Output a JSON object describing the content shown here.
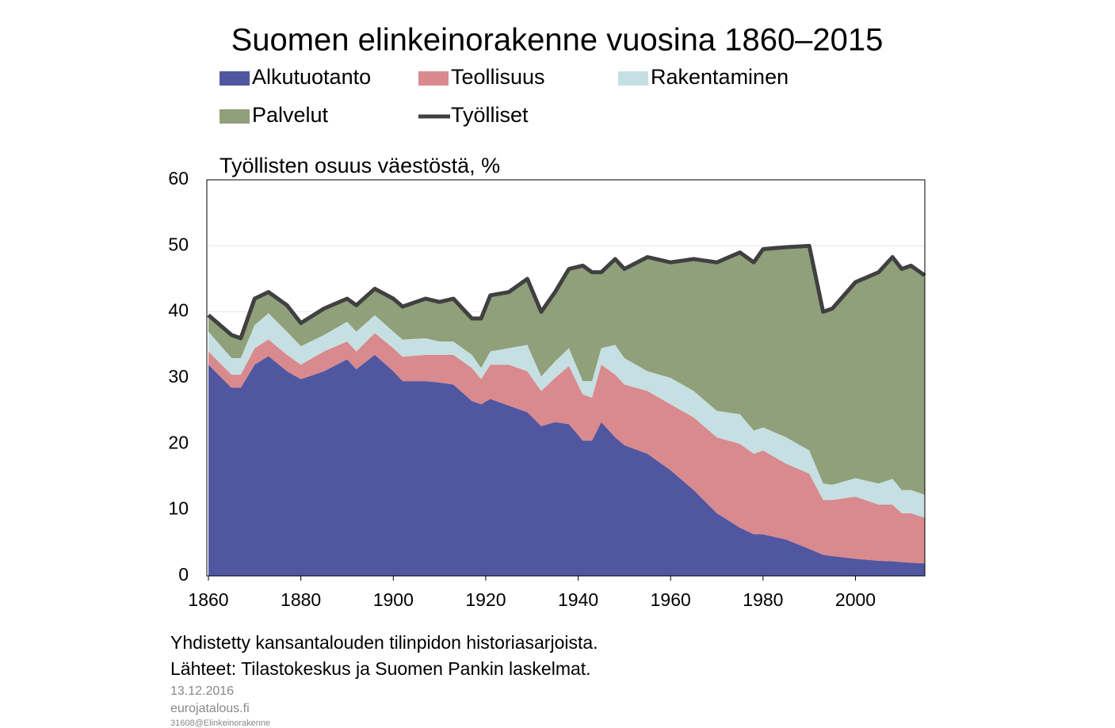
{
  "chart_data": {
    "type": "area",
    "stacked": true,
    "title": "Suomen elinkeinorakenne vuosina 1860–2015",
    "y_label": "Työllisten osuus väestöstä, %",
    "x": [
      1860,
      1865,
      1867,
      1870,
      1873,
      1877,
      1880,
      1885,
      1890,
      1892,
      1896,
      1900,
      1902,
      1907,
      1910,
      1913,
      1917,
      1919,
      1921,
      1925,
      1929,
      1932,
      1935,
      1938,
      1941,
      1943,
      1945,
      1948,
      1950,
      1955,
      1960,
      1965,
      1970,
      1975,
      1978,
      1980,
      1985,
      1990,
      1993,
      1995,
      2000,
      2005,
      2008,
      2010,
      2012,
      2015
    ],
    "series": [
      {
        "name": "Alkutuotanto",
        "color": "#5057a0",
        "values": [
          32,
          28.5,
          28.5,
          32,
          33.3,
          31,
          29.8,
          31,
          32.8,
          31.3,
          33.5,
          31,
          29.5,
          29.5,
          29.3,
          29,
          26.5,
          26,
          26.8,
          25.8,
          24.8,
          22.7,
          23.3,
          23,
          20.5,
          20.5,
          23.3,
          21,
          19.8,
          18.5,
          16,
          13,
          9.5,
          7.3,
          6.3,
          6.3,
          5.5,
          4.1,
          3.2,
          3,
          2.6,
          2.3,
          2.2,
          2.1,
          2,
          1.9
        ]
      },
      {
        "name": "Teollisuus",
        "color": "#d98a8e",
        "values": [
          2,
          2,
          2,
          2.5,
          2.5,
          2.5,
          2.2,
          3,
          2.7,
          2.7,
          3.3,
          3.5,
          3.7,
          4,
          4.2,
          4.5,
          5,
          3.8,
          5.2,
          6.2,
          6.2,
          5.3,
          6.7,
          8.8,
          7,
          6.5,
          8.7,
          9.5,
          9.2,
          9.5,
          10,
          11,
          11.5,
          12.7,
          12.2,
          12.7,
          11.5,
          11.4,
          8.3,
          8.5,
          9.4,
          8.5,
          8.6,
          7.4,
          7.5,
          6.9
        ]
      },
      {
        "name": "Rakentaminen",
        "color": "#c6dfe2",
        "values": [
          3,
          2.5,
          2.5,
          3.5,
          4,
          3.5,
          2.8,
          2.5,
          3,
          3,
          2.7,
          2.5,
          2.6,
          2.5,
          2,
          2,
          2,
          1.7,
          2,
          2.5,
          4,
          2.2,
          2.5,
          2.7,
          2,
          2.5,
          2.5,
          4.5,
          4,
          3,
          4,
          4,
          4,
          4.5,
          3.5,
          3.5,
          4,
          3.5,
          2.5,
          2.3,
          2.8,
          3.2,
          3.9,
          3.5,
          3.5,
          3.5
        ]
      },
      {
        "name": "Palvelut",
        "color": "#8fa07a",
        "values": [
          2.5,
          3.5,
          3,
          4,
          3.2,
          4,
          3.5,
          4,
          3.5,
          4,
          4,
          5,
          5,
          6,
          6,
          6.5,
          5.5,
          7.5,
          8.5,
          8.5,
          10,
          9.8,
          10.5,
          12,
          17.5,
          16.5,
          11.5,
          13,
          13.5,
          17.3,
          17.5,
          20,
          22.5,
          24.5,
          25.5,
          27,
          28.8,
          31,
          26,
          26.7,
          29.7,
          32,
          33.6,
          33.5,
          34,
          32.8
        ]
      },
      {
        "name": "Työlliset",
        "type": "line",
        "color": "#404040",
        "values": [
          39.5,
          36.5,
          36,
          42,
          43,
          41,
          38.3,
          40.5,
          42,
          41,
          43.5,
          42,
          40.8,
          42,
          41.5,
          42,
          39,
          39,
          42.5,
          43,
          45,
          40,
          43,
          46.5,
          47,
          46,
          46,
          48,
          46.5,
          48.3,
          47.5,
          48,
          47.5,
          49,
          47.5,
          49.5,
          49.8,
          50,
          40,
          40.5,
          44.5,
          46,
          48.3,
          46.5,
          47,
          45.5
        ]
      }
    ],
    "xlim": [
      1860,
      2015
    ],
    "xticks": [
      1860,
      1880,
      1900,
      1920,
      1940,
      1960,
      1980,
      2000
    ],
    "ylim": [
      0,
      60
    ],
    "yticks": [
      0,
      10,
      20,
      30,
      40,
      50,
      60
    ],
    "grid": true,
    "notes": [
      "Yhdistetty kansantalouden tilinpidon historiasarjoista.",
      "Lähteet: Tilastokeskus ja Suomen Pankin laskelmat."
    ],
    "footer": [
      "13.12.2016",
      "eurojatalous.fi",
      "31608@Elinkeinorakenne"
    ]
  }
}
